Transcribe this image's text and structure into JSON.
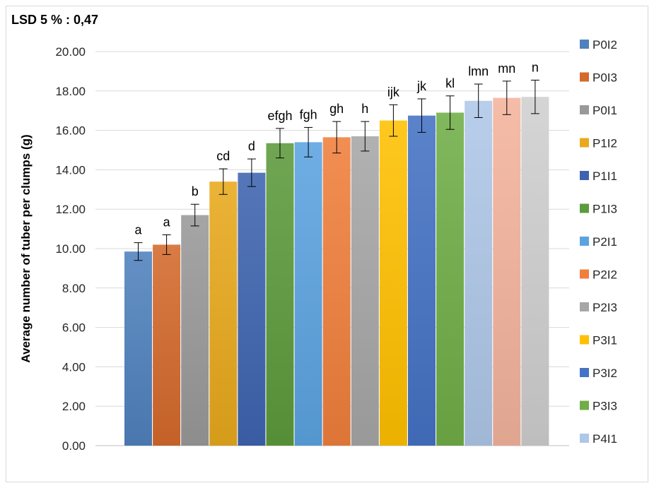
{
  "chart_data": {
    "type": "bar",
    "annotation": "LSD 5 % : 0,47",
    "ylabel": "Average number of tuber per clumps (g)",
    "ylim": [
      0,
      20
    ],
    "yticks": [
      "0.00",
      "2.00",
      "4.00",
      "6.00",
      "8.00",
      "10.00",
      "12.00",
      "14.00",
      "16.00",
      "18.00",
      "20.00"
    ],
    "grid": true,
    "legend_position": "right",
    "error_bars": true,
    "bars": [
      {
        "name": "P0I2",
        "value": 9.85,
        "error": 0.45,
        "letter": "a",
        "color": "#4f81bd"
      },
      {
        "name": "P0I3",
        "value": 10.2,
        "error": 0.5,
        "letter": "a",
        "color": "#d4692c"
      },
      {
        "name": "P0I1",
        "value": 11.7,
        "error": 0.55,
        "letter": "b",
        "color": "#999999"
      },
      {
        "name": "P1I2",
        "value": 13.4,
        "error": 0.65,
        "letter": "cd",
        "color": "#e8a91c"
      },
      {
        "name": "P1I1",
        "value": 13.85,
        "error": 0.7,
        "letter": "d",
        "color": "#3e64b0"
      },
      {
        "name": "P1I3",
        "value": 15.35,
        "error": 0.75,
        "letter": "efgh",
        "color": "#5c9a3c"
      },
      {
        "name": "P2I1",
        "value": 15.4,
        "error": 0.75,
        "letter": "fgh",
        "color": "#5ba3e0"
      },
      {
        "name": "P2I2",
        "value": 15.65,
        "error": 0.8,
        "letter": "gh",
        "color": "#f07f3c"
      },
      {
        "name": "P2I3",
        "value": 15.7,
        "error": 0.75,
        "letter": "h",
        "color": "#a6a6a6"
      },
      {
        "name": "P3I1",
        "value": 16.5,
        "error": 0.8,
        "letter": "ijk",
        "color": "#ffc000"
      },
      {
        "name": "P3I2",
        "value": 16.75,
        "error": 0.85,
        "letter": "jk",
        "color": "#4472c4"
      },
      {
        "name": "P3I3",
        "value": 16.9,
        "error": 0.85,
        "letter": "kl",
        "color": "#70ad47"
      },
      {
        "name": "P4I1",
        "value": 17.5,
        "error": 0.85,
        "letter": "lmn",
        "color": "#aec7e8"
      },
      {
        "name": "",
        "value": 17.65,
        "error": 0.85,
        "letter": "mn",
        "color": "#f4b39c"
      },
      {
        "name": "",
        "value": 17.7,
        "error": 0.85,
        "letter": "n",
        "color": "#cfcfcf"
      }
    ]
  }
}
